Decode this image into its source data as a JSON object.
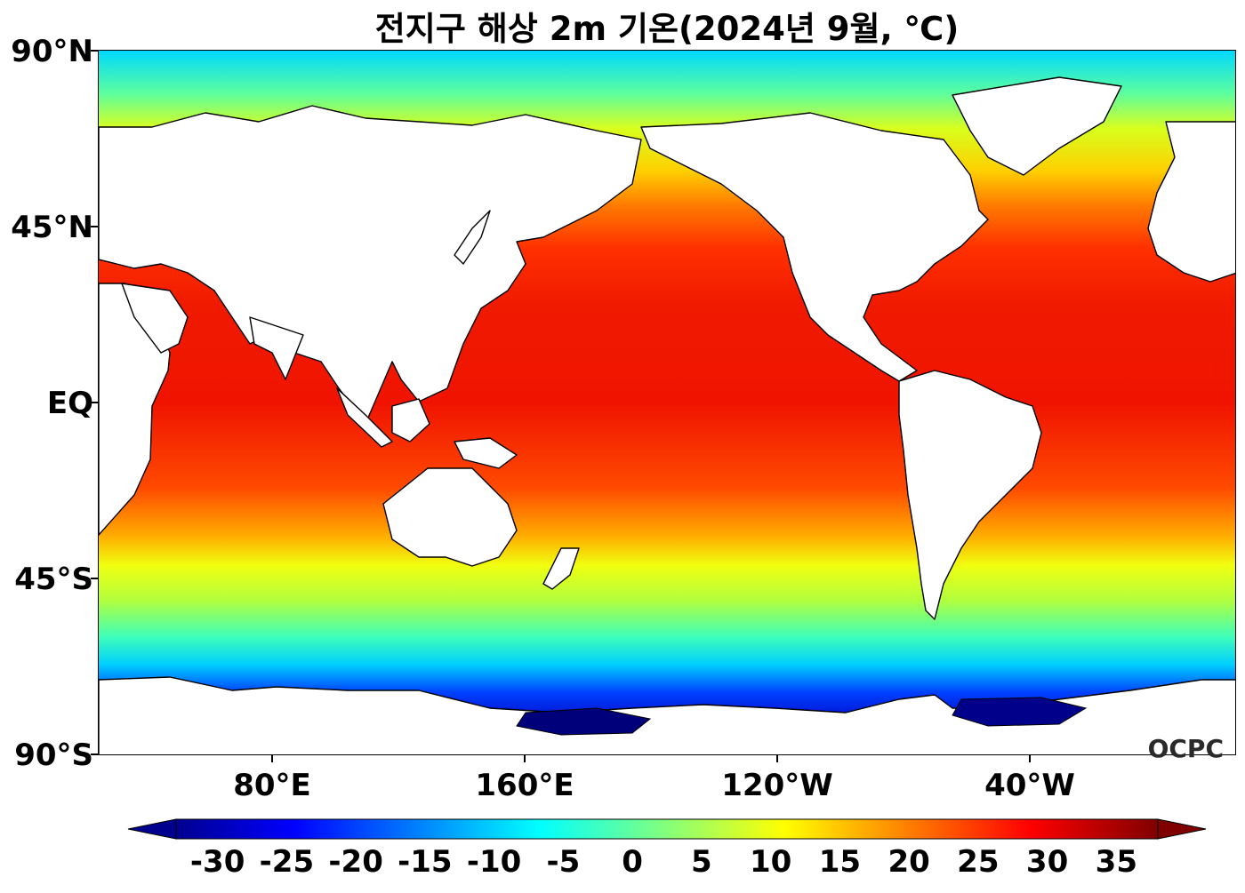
{
  "title": "전지구 해상 2m 기온(2024년 9월, ℃)",
  "watermark": "OCPC",
  "lat_labels": [
    "90°N",
    "45°N",
    "EQ",
    "45°S",
    "90°S"
  ],
  "lon_labels": [
    "80°E",
    "160°E",
    "120°W",
    "40°W"
  ],
  "colorbar": {
    "labels": [
      "-30",
      "-25",
      "-20",
      "-15",
      "-10",
      "-5",
      "0",
      "5",
      "10",
      "15",
      "20",
      "25",
      "30",
      "35"
    ],
    "min": -33,
    "max": 38,
    "colormap": "jet",
    "extend": "both",
    "colors": [
      "#00008f",
      "#0000ff",
      "#00ffff",
      "#ffff00",
      "#ff0000",
      "#800000"
    ]
  },
  "map": {
    "projection": "equirectangular",
    "lon_range": [
      25,
      385
    ],
    "lat_range": [
      -90,
      90
    ],
    "land_color": "#ffffff",
    "coastline_color": "#000000"
  }
}
